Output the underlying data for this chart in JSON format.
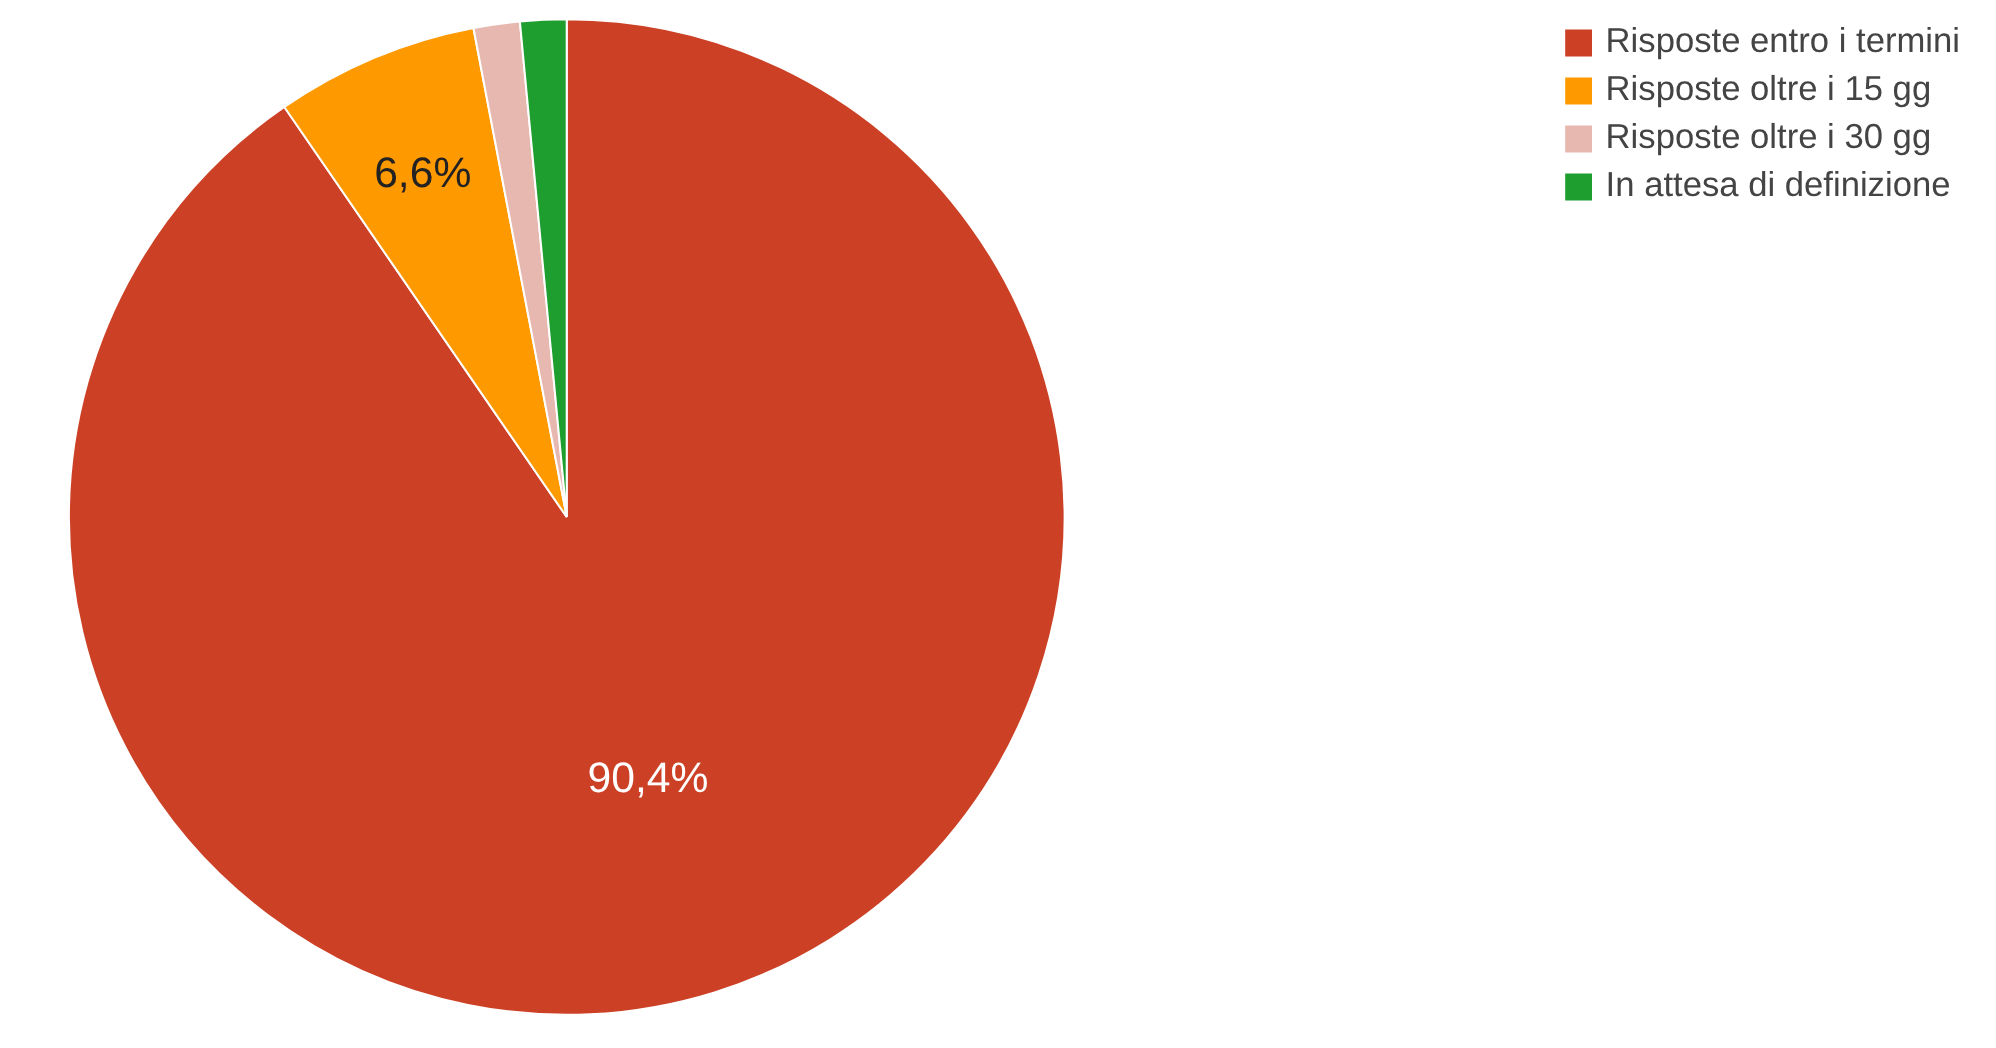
{
  "chart_data": {
    "type": "pie",
    "categories": [
      "Risposte entro i termini",
      "Risposte oltre i 15 gg",
      "Risposte oltre i 30 gg",
      "In attesa di definizione"
    ],
    "values": [
      90.4,
      6.6,
      1.5,
      1.5
    ],
    "colors": [
      "#cc4125",
      "#ff9900",
      "#e6b8af",
      "#1e9e2e"
    ],
    "value_labels": [
      "90,4%",
      "6,6%",
      null,
      null
    ],
    "legend": "top right"
  }
}
